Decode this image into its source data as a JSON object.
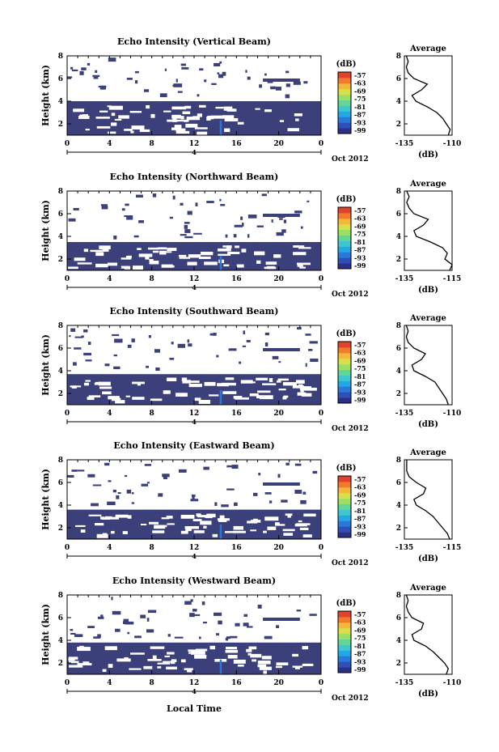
{
  "figure": {
    "xlabel": "Local Time",
    "date_label": "Oct 2012",
    "colorbar_unit": "(dB)",
    "average_title": "Average"
  },
  "colors": {
    "background": "#ffffff",
    "echo_fill": "#3b3f7a",
    "colorbar": [
      "#2b2f86",
      "#2f4fb8",
      "#2a78d8",
      "#23a7e6",
      "#3ec7cf",
      "#61d59a",
      "#9adf66",
      "#d7e04a",
      "#f3b83a",
      "#f27a2c",
      "#e0432b"
    ]
  },
  "chart_data": [
    {
      "type": "heatmap",
      "title": "Echo Intensity (Vertical Beam)",
      "ylabel": "Height (km)",
      "xlim": [
        0,
        24
      ],
      "ylim": [
        1,
        8
      ],
      "xticks": [
        "0",
        "4",
        "8",
        "12",
        "16",
        "20",
        "0"
      ],
      "xtick_values": [
        0,
        4,
        8,
        12,
        16,
        20,
        24
      ],
      "yticks": [
        "2",
        "4",
        "6",
        "8"
      ],
      "date_marker": "4",
      "colorbar_ticks": [
        "-57",
        "-63",
        "-69",
        "-75",
        "-81",
        "-87",
        "-93",
        "-99"
      ],
      "echo_layer_top_km": 4.0,
      "spike_time_h": 14.5,
      "average_profile": {
        "xlabel": "(dB)",
        "xlim": [
          -135,
          -110
        ],
        "xticks": [
          "-135",
          "-110"
        ],
        "yticks": [
          "2",
          "4",
          "6",
          "8"
        ],
        "height_km": [
          1,
          1.5,
          2,
          2.5,
          3,
          3.5,
          4,
          4.5,
          5,
          5.5,
          6,
          6.5,
          7,
          7.5,
          8
        ],
        "db": [
          -112,
          -111,
          -113,
          -115,
          -118,
          -123,
          -129,
          -131,
          -126,
          -123,
          -130,
          -133,
          -134,
          -133,
          -134
        ]
      }
    },
    {
      "type": "heatmap",
      "title": "Echo Intensity (Northward Beam)",
      "ylabel": "Height (km)",
      "xlim": [
        0,
        24
      ],
      "ylim": [
        1,
        8
      ],
      "xticks": [
        "0",
        "4",
        "8",
        "12",
        "16",
        "20",
        "0"
      ],
      "xtick_values": [
        0,
        4,
        8,
        12,
        16,
        20,
        24
      ],
      "yticks": [
        "2",
        "4",
        "6",
        "8"
      ],
      "date_marker": "4",
      "colorbar_ticks": [
        "-57",
        "-63",
        "-69",
        "-75",
        "-81",
        "-87",
        "-93",
        "-99"
      ],
      "echo_layer_top_km": 3.5,
      "spike_time_h": 14.5,
      "average_profile": {
        "xlabel": "(dB)",
        "xlim": [
          -135,
          -115
        ],
        "xticks": [
          "-135",
          "-115"
        ],
        "yticks": [
          "2",
          "4",
          "6",
          "8"
        ],
        "height_km": [
          1,
          1.5,
          2,
          2.5,
          3,
          3.5,
          4,
          4.5,
          5,
          5.5,
          6,
          6.5,
          7,
          7.5,
          8
        ],
        "db": [
          -116,
          -115,
          -118,
          -117,
          -119,
          -124,
          -130,
          -131,
          -127,
          -125,
          -131,
          -133,
          -134,
          -133,
          -134
        ]
      }
    },
    {
      "type": "heatmap",
      "title": "Echo Intensity (Southward Beam)",
      "ylabel": "Height (km)",
      "xlim": [
        0,
        24
      ],
      "ylim": [
        1,
        8
      ],
      "xticks": [
        "0",
        "4",
        "8",
        "12",
        "16",
        "20",
        "0"
      ],
      "xtick_values": [
        0,
        4,
        8,
        12,
        16,
        20,
        24
      ],
      "yticks": [
        "2",
        "4",
        "6",
        "8"
      ],
      "date_marker": "4",
      "colorbar_ticks": [
        "-57",
        "-63",
        "-69",
        "-75",
        "-81",
        "-87",
        "-93",
        "-99"
      ],
      "echo_layer_top_km": 3.7,
      "spike_time_h": 14.5,
      "average_profile": {
        "xlabel": "(dB)",
        "xlim": [
          -135,
          -110
        ],
        "xticks": [
          "-135",
          "-110"
        ],
        "yticks": [
          "2",
          "4",
          "6",
          "8"
        ],
        "height_km": [
          1,
          1.5,
          2,
          2.5,
          3,
          3.5,
          4,
          4.5,
          5,
          5.5,
          6,
          6.5,
          7,
          7.5,
          8
        ],
        "db": [
          -112,
          -113,
          -115,
          -117,
          -119,
          -124,
          -130,
          -131,
          -126,
          -124,
          -130,
          -133,
          -134,
          -133,
          -134
        ]
      }
    },
    {
      "type": "heatmap",
      "title": "Echo Intensity (Eastward Beam)",
      "ylabel": "Height (km)",
      "xlim": [
        0,
        24
      ],
      "ylim": [
        1,
        8
      ],
      "xticks": [
        "0",
        "4",
        "8",
        "12",
        "16",
        "20",
        "0"
      ],
      "xtick_values": [
        0,
        4,
        8,
        12,
        16,
        20,
        24
      ],
      "yticks": [
        "2",
        "4",
        "6",
        "8"
      ],
      "date_marker": "4",
      "colorbar_ticks": [
        "-57",
        "-63",
        "-69",
        "-75",
        "-81",
        "-87",
        "-93",
        "-99"
      ],
      "echo_layer_top_km": 3.6,
      "spike_time_h": 14.5,
      "average_profile": {
        "xlabel": "(dB)",
        "xlim": [
          -135,
          -115
        ],
        "xticks": [
          "-135",
          "-115"
        ],
        "yticks": [
          "2",
          "4",
          "6",
          "8"
        ],
        "height_km": [
          1,
          1.5,
          2,
          2.5,
          3,
          3.5,
          4,
          4.5,
          5,
          5.5,
          6,
          6.5,
          7,
          7.5,
          8
        ],
        "db": [
          -116,
          -117,
          -119,
          -121,
          -123,
          -126,
          -130,
          -131,
          -127,
          -126,
          -130,
          -133,
          -134,
          -134,
          -134
        ]
      }
    },
    {
      "type": "heatmap",
      "title": "Echo Intensity (Westward Beam)",
      "ylabel": "Height (km)",
      "xlim": [
        0,
        24
      ],
      "ylim": [
        1,
        8
      ],
      "xticks": [
        "0",
        "4",
        "8",
        "12",
        "16",
        "20",
        "0"
      ],
      "xtick_values": [
        0,
        4,
        8,
        12,
        16,
        20,
        24
      ],
      "yticks": [
        "2",
        "4",
        "6",
        "8"
      ],
      "date_marker": "4",
      "colorbar_ticks": [
        "-57",
        "-63",
        "-69",
        "-75",
        "-81",
        "-87",
        "-93",
        "-99"
      ],
      "echo_layer_top_km": 3.8,
      "spike_time_h": 14.5,
      "average_profile": {
        "xlabel": "(dB)",
        "xlim": [
          -135,
          -110
        ],
        "xticks": [
          "-135",
          "-110"
        ],
        "yticks": [
          "2",
          "4",
          "6",
          "8"
        ],
        "height_km": [
          1,
          1.5,
          2,
          2.5,
          3,
          3.5,
          4,
          4.5,
          5,
          5.5,
          6,
          6.5,
          7,
          7.5,
          8
        ],
        "db": [
          -113,
          -112,
          -114,
          -117,
          -120,
          -124,
          -130,
          -131,
          -126,
          -125,
          -131,
          -133,
          -134,
          -133,
          -134
        ]
      }
    }
  ]
}
